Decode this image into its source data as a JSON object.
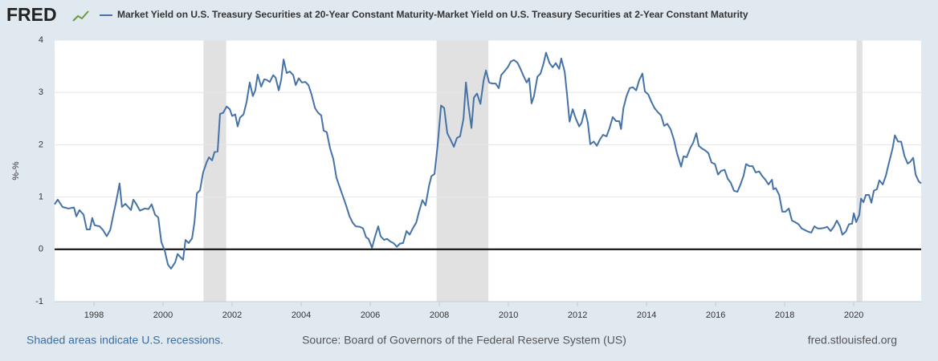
{
  "logo": "FRED",
  "chart_data": {
    "type": "line",
    "ylabel": "%-%",
    "ylim": [
      -1,
      4
    ],
    "yticks": [
      -1,
      0,
      1,
      2,
      3,
      4
    ],
    "xlim": [
      1996.86,
      2021.95
    ],
    "xticks": [
      1998,
      2000,
      2002,
      2004,
      2006,
      2008,
      2010,
      2012,
      2014,
      2016,
      2018,
      2020
    ],
    "grid": true,
    "recessions": [
      {
        "start": 2001.17,
        "end": 2001.83
      },
      {
        "start": 2007.92,
        "end": 2009.42
      },
      {
        "start": 2020.08,
        "end": 2020.25
      }
    ],
    "x": [
      1996.86,
      1996.95,
      1997.09,
      1997.26,
      1997.42,
      1997.49,
      1997.58,
      1997.7,
      1997.79,
      1997.88,
      1997.95,
      1998.02,
      1998.16,
      1998.26,
      1998.37,
      1998.47,
      1998.56,
      1998.65,
      1998.74,
      1998.81,
      1998.91,
      1999.07,
      1999.14,
      1999.23,
      1999.33,
      1999.47,
      1999.58,
      1999.67,
      1999.77,
      1999.86,
      1999.95,
      2000.05,
      2000.14,
      2000.23,
      2000.35,
      2000.42,
      2000.49,
      2000.58,
      2000.65,
      2000.74,
      2000.84,
      2000.91,
      2000.98,
      2001.07,
      2001.16,
      2001.26,
      2001.33,
      2001.42,
      2001.49,
      2001.58,
      2001.65,
      2001.74,
      2001.84,
      2001.93,
      2002.0,
      2002.09,
      2002.16,
      2002.23,
      2002.33,
      2002.42,
      2002.51,
      2002.6,
      2002.67,
      2002.74,
      2002.84,
      2002.93,
      2003.0,
      2003.09,
      2003.19,
      2003.26,
      2003.35,
      2003.42,
      2003.49,
      2003.58,
      2003.67,
      2003.77,
      2003.84,
      2003.93,
      2004.02,
      2004.12,
      2004.21,
      2004.3,
      2004.4,
      2004.49,
      2004.58,
      2004.65,
      2004.74,
      2004.84,
      2004.93,
      2005.02,
      2005.12,
      2005.21,
      2005.3,
      2005.4,
      2005.49,
      2005.58,
      2005.7,
      2005.79,
      2005.88,
      2005.95,
      2006.05,
      2006.14,
      2006.23,
      2006.3,
      2006.4,
      2006.49,
      2006.58,
      2006.67,
      2006.77,
      2006.86,
      2006.95,
      2007.05,
      2007.14,
      2007.23,
      2007.33,
      2007.42,
      2007.51,
      2007.6,
      2007.7,
      2007.77,
      2007.86,
      2007.95,
      2008.05,
      2008.14,
      2008.23,
      2008.33,
      2008.42,
      2008.51,
      2008.6,
      2008.7,
      2008.77,
      2008.84,
      2008.93,
      2009.0,
      2009.09,
      2009.19,
      2009.28,
      2009.35,
      2009.44,
      2009.53,
      2009.63,
      2009.72,
      2009.79,
      2009.88,
      2009.98,
      2010.07,
      2010.16,
      2010.26,
      2010.35,
      2010.44,
      2010.53,
      2010.6,
      2010.67,
      2010.74,
      2010.84,
      2010.93,
      2011.02,
      2011.09,
      2011.19,
      2011.28,
      2011.37,
      2011.47,
      2011.53,
      2011.63,
      2011.7,
      2011.77,
      2011.86,
      2011.95,
      2012.05,
      2012.12,
      2012.21,
      2012.3,
      2012.37,
      2012.47,
      2012.56,
      2012.65,
      2012.74,
      2012.84,
      2012.93,
      2013.02,
      2013.12,
      2013.21,
      2013.26,
      2013.33,
      2013.42,
      2013.51,
      2013.6,
      2013.7,
      2013.79,
      2013.88,
      2013.95,
      2014.05,
      2014.14,
      2014.23,
      2014.33,
      2014.42,
      2014.51,
      2014.6,
      2014.7,
      2014.79,
      2014.88,
      2015.0,
      2015.07,
      2015.16,
      2015.26,
      2015.35,
      2015.44,
      2015.51,
      2015.6,
      2015.7,
      2015.79,
      2015.88,
      2015.98,
      2016.07,
      2016.16,
      2016.26,
      2016.35,
      2016.44,
      2016.53,
      2016.63,
      2016.72,
      2016.81,
      2016.88,
      2016.98,
      2017.07,
      2017.16,
      2017.26,
      2017.35,
      2017.44,
      2017.53,
      2017.63,
      2017.67,
      2017.74,
      2017.84,
      2017.93,
      2018.02,
      2018.12,
      2018.21,
      2018.3,
      2018.4,
      2018.49,
      2018.58,
      2018.67,
      2018.77,
      2018.86,
      2018.95,
      2019.05,
      2019.14,
      2019.23,
      2019.33,
      2019.42,
      2019.51,
      2019.6,
      2019.67,
      2019.77,
      2019.86,
      2019.95,
      2020.0,
      2020.07,
      2020.16,
      2020.21,
      2020.28,
      2020.35,
      2020.44,
      2020.51,
      2020.58,
      2020.67,
      2020.74,
      2020.84,
      2020.93,
      2021.02,
      2021.12,
      2021.19,
      2021.28,
      2021.37,
      2021.47,
      2021.56,
      2021.63,
      2021.72,
      2021.79,
      2021.88,
      2021.95
    ],
    "series": [
      {
        "name": "Market Yield on U.S. Treasury Securities at 20-Year Constant Maturity-Market Yield on U.S. Treasury Securities at 2-Year Constant Maturity",
        "color": "#4572a7",
        "values": [
          0.86,
          0.95,
          0.81,
          0.78,
          0.8,
          0.63,
          0.75,
          0.66,
          0.38,
          0.38,
          0.6,
          0.46,
          0.44,
          0.37,
          0.25,
          0.37,
          0.66,
          0.94,
          1.26,
          0.81,
          0.87,
          0.75,
          0.95,
          0.86,
          0.74,
          0.78,
          0.77,
          0.86,
          0.66,
          0.61,
          0.14,
          -0.03,
          -0.29,
          -0.37,
          -0.25,
          -0.09,
          -0.14,
          -0.2,
          0.18,
          0.12,
          0.21,
          0.52,
          1.07,
          1.13,
          1.47,
          1.66,
          1.76,
          1.7,
          1.86,
          1.87,
          2.59,
          2.61,
          2.73,
          2.68,
          2.55,
          2.58,
          2.35,
          2.52,
          2.58,
          2.82,
          3.19,
          2.93,
          3.04,
          3.34,
          3.11,
          3.25,
          3.24,
          3.2,
          3.33,
          3.28,
          3.04,
          3.24,
          3.63,
          3.37,
          3.4,
          3.33,
          3.14,
          3.27,
          3.19,
          3.2,
          3.14,
          2.96,
          2.7,
          2.61,
          2.56,
          2.27,
          2.24,
          1.92,
          1.73,
          1.37,
          1.18,
          1.01,
          0.84,
          0.63,
          0.51,
          0.44,
          0.43,
          0.4,
          0.23,
          0.2,
          0.03,
          0.25,
          0.44,
          0.25,
          0.18,
          0.2,
          0.15,
          0.12,
          0.05,
          0.11,
          0.12,
          0.35,
          0.28,
          0.4,
          0.51,
          0.74,
          0.94,
          0.84,
          1.21,
          1.4,
          1.44,
          1.99,
          2.75,
          2.7,
          2.22,
          2.09,
          1.96,
          2.13,
          2.16,
          2.5,
          3.19,
          2.76,
          2.32,
          2.9,
          2.98,
          2.78,
          3.22,
          3.42,
          3.19,
          3.17,
          3.17,
          3.08,
          3.33,
          3.4,
          3.48,
          3.59,
          3.62,
          3.57,
          3.45,
          3.31,
          3.19,
          3.27,
          2.79,
          2.93,
          3.3,
          3.36,
          3.56,
          3.76,
          3.56,
          3.48,
          3.56,
          3.45,
          3.65,
          3.39,
          2.94,
          2.44,
          2.68,
          2.5,
          2.35,
          2.42,
          2.67,
          2.42,
          2.01,
          2.06,
          1.98,
          2.1,
          2.19,
          2.16,
          2.32,
          2.53,
          2.45,
          2.45,
          2.3,
          2.7,
          2.93,
          3.08,
          3.1,
          3.04,
          3.24,
          3.36,
          3.02,
          2.96,
          2.82,
          2.7,
          2.62,
          2.56,
          2.36,
          2.4,
          2.29,
          2.1,
          1.84,
          1.58,
          1.78,
          1.76,
          1.93,
          2.04,
          2.22,
          1.98,
          1.93,
          1.89,
          1.84,
          1.66,
          1.63,
          1.43,
          1.5,
          1.52,
          1.35,
          1.27,
          1.12,
          1.1,
          1.24,
          1.41,
          1.63,
          1.59,
          1.59,
          1.47,
          1.49,
          1.4,
          1.33,
          1.24,
          1.33,
          1.15,
          1.17,
          1.04,
          0.72,
          0.72,
          0.78,
          0.55,
          0.52,
          0.48,
          0.4,
          0.37,
          0.34,
          0.32,
          0.44,
          0.4,
          0.4,
          0.41,
          0.43,
          0.35,
          0.43,
          0.55,
          0.44,
          0.28,
          0.34,
          0.48,
          0.49,
          0.69,
          0.52,
          0.66,
          0.97,
          0.9,
          1.04,
          1.04,
          0.89,
          1.12,
          1.15,
          1.32,
          1.24,
          1.41,
          1.66,
          1.92,
          2.18,
          2.06,
          2.06,
          1.78,
          1.64,
          1.67,
          1.75,
          1.43,
          1.3,
          1.26
        ]
      }
    ]
  },
  "footer": {
    "note": "Shaded areas indicate U.S. recessions.",
    "source": "Source: Board of Governors of the Federal Reserve System (US)",
    "site": "fred.stlouisfed.org"
  }
}
